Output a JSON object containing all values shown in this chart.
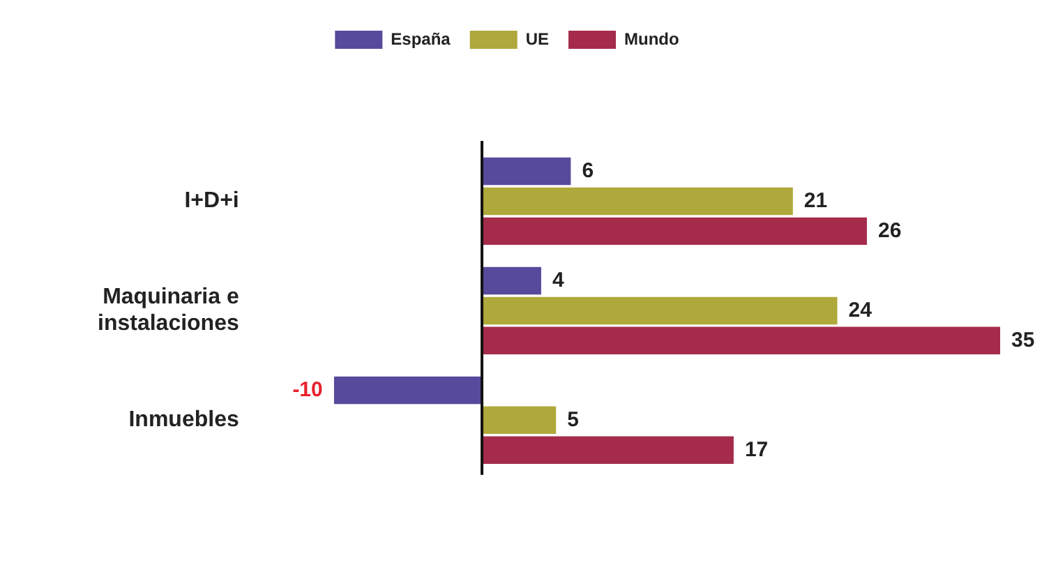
{
  "chart_data": {
    "type": "bar",
    "orientation": "horizontal",
    "categories": [
      "I+D+i",
      "Maquinaria e instalaciones",
      "Inmuebles"
    ],
    "series": [
      {
        "name": "España",
        "color": "#574a9c",
        "values": [
          6,
          4,
          -10
        ]
      },
      {
        "name": "UE",
        "color": "#afa83a",
        "values": [
          21,
          24,
          5
        ]
      },
      {
        "name": "Mundo",
        "color": "#a52b4b",
        "values": [
          26,
          35,
          17
        ]
      }
    ],
    "data_labels": true,
    "legend": "top",
    "grid": false
  }
}
